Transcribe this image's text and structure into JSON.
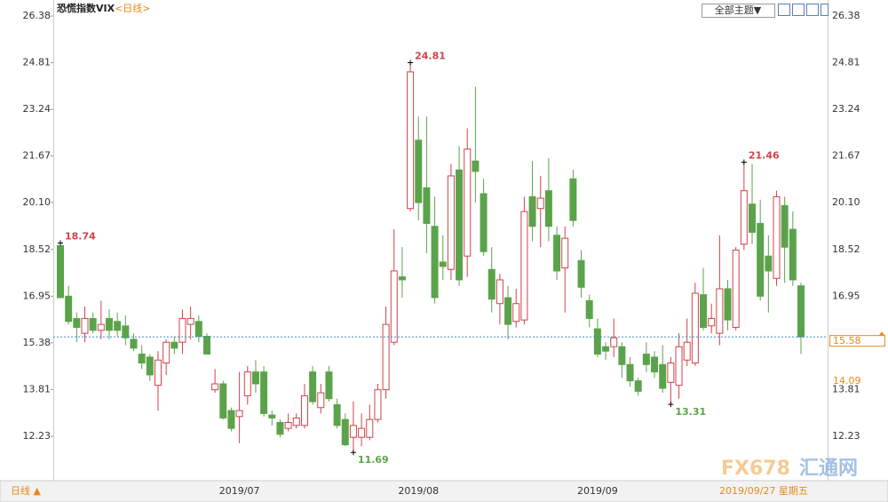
{
  "title": "恐慌指数VIX",
  "subtitle": "<日线>",
  "toolbar": {
    "theme": "全部主题▼"
  },
  "footer": {
    "period": "日线 ▲",
    "date": "2019/09/27 星期五"
  },
  "watermark": {
    "logo": "FX678",
    "name": "汇通网"
  },
  "chart_data": {
    "type": "candlestick",
    "up_color": "#d0434a",
    "down_color": "#5ba34a",
    "ylim": [
      10.77,
      26.77
    ],
    "yticks": [
      26.38,
      24.81,
      23.24,
      21.67,
      {
        "value": 20.1,
        "label": "20.10"
      },
      18.52,
      16.95,
      15.38,
      13.81,
      12.23
    ],
    "grid": false,
    "cursor_value": 14.09,
    "categories": [
      null,
      null,
      null,
      null,
      null,
      null,
      null,
      null,
      null,
      null,
      null,
      null,
      null,
      null,
      null,
      null,
      null,
      null,
      null,
      null,
      null,
      null,
      "2019/07",
      null,
      null,
      null,
      null,
      null,
      null,
      null,
      null,
      null,
      null,
      null,
      null,
      null,
      null,
      null,
      null,
      null,
      null,
      null,
      null,
      null,
      "2019/08",
      null,
      null,
      null,
      null,
      null,
      null,
      null,
      null,
      null,
      null,
      null,
      null,
      null,
      null,
      null,
      null,
      null,
      null,
      null,
      null,
      null,
      "2019/09",
      null,
      null,
      null,
      null,
      null,
      null,
      null,
      null,
      null,
      null,
      null,
      null,
      null,
      null,
      null,
      null,
      null,
      null,
      null,
      null,
      null,
      null,
      null,
      null,
      null
    ],
    "open": [
      18.65,
      16.95,
      16.2,
      15.7,
      16.2,
      15.8,
      16.2,
      16.1,
      15.95,
      15.5,
      15.0,
      14.9,
      13.95,
      14.7,
      15.4,
      15.4,
      16.0,
      16.1,
      15.6,
      13.8,
      14.0,
      13.1,
      12.9,
      13.6,
      14.4,
      14.4,
      12.95,
      12.7,
      12.5,
      12.6,
      12.6,
      14.4,
      13.2,
      14.4,
      13.3,
      12.8,
      12.2,
      12.2,
      12.2,
      12.8,
      13.8,
      15.4,
      17.6,
      19.9,
      22.2,
      20.6,
      19.3,
      18.1,
      17.85,
      21.2,
      18.3,
      21.5,
      20.4,
      17.85,
      16.7,
      16.9,
      16.1,
      16.15,
      20.3,
      19.9,
      20.5,
      19.0,
      17.9,
      20.9,
      18.15,
      16.8,
      15.85,
      15.25,
      15.25,
      15.25,
      14.65,
      14.1,
      15.0,
      14.9,
      14.65,
      14.05,
      13.95,
      14.8,
      14.7,
      17.0,
      15.95,
      15.7,
      17.2,
      15.9,
      18.7,
      20.05,
      19.4,
      18.3,
      17.55,
      20.0,
      19.2,
      17.3
    ],
    "high": [
      18.74,
      17.3,
      16.4,
      16.6,
      16.4,
      16.8,
      16.5,
      16.4,
      16.3,
      15.7,
      15.3,
      15.0,
      15.1,
      15.5,
      15.6,
      16.5,
      16.6,
      16.3,
      15.7,
      14.5,
      14.1,
      13.2,
      14.4,
      14.6,
      14.8,
      14.6,
      13.1,
      12.8,
      13.0,
      13.0,
      14.0,
      14.6,
      14.0,
      14.6,
      13.5,
      13.0,
      13.4,
      13.0,
      13.3,
      14.0,
      16.6,
      19.2,
      18.6,
      24.81,
      23.0,
      23.0,
      20.3,
      19.0,
      21.4,
      22.0,
      22.6,
      24.0,
      20.9,
      18.6,
      17.7,
      17.3,
      17.2,
      20.3,
      21.5,
      21.0,
      21.6,
      19.3,
      19.3,
      21.2,
      18.5,
      17.0,
      16.2,
      15.4,
      16.2,
      15.4,
      14.9,
      14.2,
      15.4,
      15.1,
      15.3,
      14.9,
      15.7,
      16.2,
      17.4,
      17.9,
      16.7,
      19.0,
      17.5,
      18.6,
      21.46,
      21.4,
      20.2,
      19.0,
      20.5,
      20.3,
      19.8,
      17.4
    ],
    "low": [
      16.9,
      16.0,
      15.4,
      15.4,
      15.7,
      15.5,
      15.5,
      15.6,
      15.3,
      15.1,
      14.5,
      14.1,
      13.1,
      14.3,
      15.0,
      15.0,
      15.5,
      15.4,
      15.0,
      13.7,
      12.8,
      12.4,
      12.0,
      13.3,
      13.7,
      12.9,
      12.6,
      12.2,
      12.4,
      12.5,
      12.5,
      13.3,
      13.0,
      13.4,
      12.5,
      11.9,
      11.69,
      11.9,
      12.1,
      12.7,
      13.5,
      15.3,
      16.9,
      19.8,
      19.5,
      18.4,
      16.7,
      17.5,
      17.5,
      17.3,
      17.6,
      20.1,
      18.3,
      16.4,
      16.0,
      15.5,
      15.9,
      16.0,
      18.8,
      18.6,
      18.8,
      17.5,
      16.4,
      19.3,
      16.9,
      15.9,
      14.9,
      14.8,
      14.9,
      14.2,
      13.9,
      13.6,
      14.4,
      14.2,
      13.7,
      13.31,
      13.5,
      14.6,
      14.6,
      15.8,
      15.7,
      15.3,
      15.8,
      15.8,
      18.5,
      18.7,
      16.8,
      16.4,
      17.3,
      17.4,
      17.3,
      15.0
    ],
    "close": [
      16.9,
      16.1,
      15.9,
      16.2,
      15.8,
      16.0,
      15.8,
      15.8,
      15.55,
      15.2,
      14.7,
      14.3,
      14.8,
      15.4,
      15.2,
      16.2,
      16.2,
      15.6,
      15.0,
      14.0,
      12.85,
      12.5,
      13.1,
      14.4,
      14.0,
      13.0,
      12.85,
      12.3,
      12.7,
      12.85,
      13.6,
      13.4,
      13.7,
      13.5,
      12.6,
      11.95,
      12.6,
      12.5,
      12.8,
      13.8,
      16.0,
      17.8,
      17.5,
      24.5,
      20.1,
      19.4,
      16.9,
      17.95,
      21.0,
      17.5,
      21.9,
      21.15,
      18.45,
      16.85,
      17.5,
      16.0,
      16.7,
      19.8,
      19.3,
      20.25,
      19.3,
      17.8,
      18.9,
      19.5,
      17.25,
      16.2,
      15.0,
      15.1,
      15.55,
      14.65,
      14.1,
      13.75,
      14.65,
      14.4,
      13.85,
      14.7,
      15.25,
      15.4,
      17.05,
      15.9,
      16.2,
      17.2,
      16.15,
      18.5,
      20.5,
      19.1,
      16.95,
      17.8,
      20.3,
      18.6,
      17.5,
      15.58
    ]
  }
}
